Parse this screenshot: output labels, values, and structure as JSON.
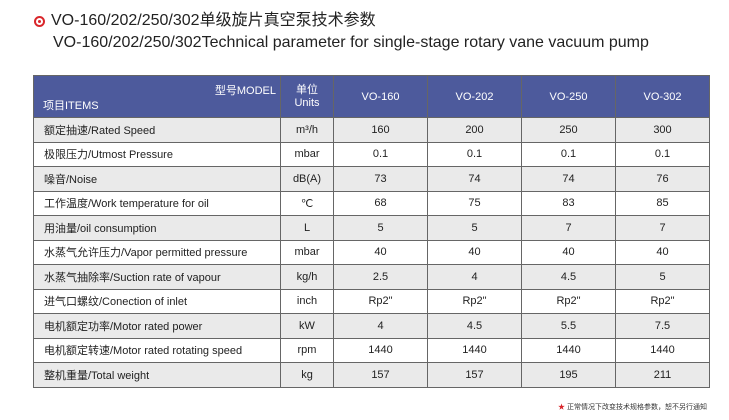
{
  "title": {
    "line1": "VO-160/202/250/302单级旋片真空泵技术参数",
    "line2": "VO-160/202/250/302Technical parameter for single-stage rotary vane vacuum pump"
  },
  "colors": {
    "header_bg": "#4d5a9c",
    "accent": "#d9262b",
    "row_alt": "#eaeaea"
  },
  "table": {
    "header": {
      "model_label": "型号MODEL",
      "items_label": "项目ITEMS",
      "units_cn": "单位",
      "units_en": "Units",
      "models": [
        "VO-160",
        "VO-202",
        "VO-250",
        "VO-302"
      ]
    },
    "rows": [
      {
        "item": "额定抽速/Rated Speed",
        "unit": "m³/h",
        "values": [
          "160",
          "200",
          "250",
          "300"
        ]
      },
      {
        "item": "极限压力/Utmost Pressure",
        "unit": "mbar",
        "values": [
          "0.1",
          "0.1",
          "0.1",
          "0.1"
        ]
      },
      {
        "item": "噪音/Noise",
        "unit": "dB(A)",
        "values": [
          "73",
          "74",
          "74",
          "76"
        ]
      },
      {
        "item": "工作温度/Work temperature for oil",
        "unit": "℃",
        "values": [
          "68",
          "75",
          "83",
          "85"
        ]
      },
      {
        "item": "用油量/oil consumption",
        "unit": "L",
        "values": [
          "5",
          "5",
          "7",
          "7"
        ]
      },
      {
        "item": "水蒸气允许压力/Vapor permitted pressure",
        "unit": "mbar",
        "values": [
          "40",
          "40",
          "40",
          "40"
        ]
      },
      {
        "item": "水蒸气抽除率/Suction rate of vapour",
        "unit": "kg/h",
        "values": [
          "2.5",
          "4",
          "4.5",
          "5"
        ]
      },
      {
        "item": "进气口螺纹/Conection of inlet",
        "unit": "inch",
        "values": [
          "Rp2\"",
          "Rp2\"",
          "Rp2\"",
          "Rp2\""
        ]
      },
      {
        "item": "电机额定功率/Motor rated power",
        "unit": "kW",
        "values": [
          "4",
          "4.5",
          "5.5",
          "7.5"
        ]
      },
      {
        "item": "电机额定转速/Motor rated rotating speed",
        "unit": "rpm",
        "values": [
          "1440",
          "1440",
          "1440",
          "1440"
        ]
      },
      {
        "item": "整机重量/Total weight",
        "unit": "kg",
        "values": [
          "157",
          "157",
          "195",
          "211"
        ]
      }
    ]
  },
  "footnote": {
    "star": "★",
    "text": "正常情况下改变技术规格参数，恕不另行通知"
  }
}
